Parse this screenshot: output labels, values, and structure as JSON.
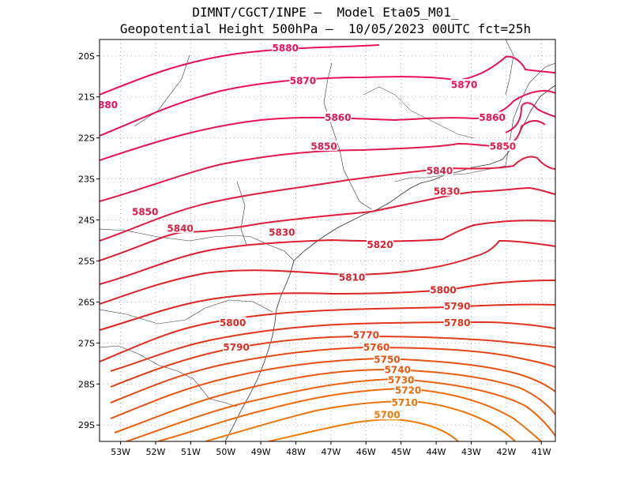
{
  "header": {
    "line1": "DIMNT/CGCT/INPE –  Model Eta05_M01_",
    "line2": "Geopotential Height 500hPa –  10/05/2023 00UTC fct=25h"
  },
  "map": {
    "lon_range": [
      -53.6,
      -40.6
    ],
    "lat_range": [
      -29.4,
      -19.6
    ],
    "lat_ticks": [
      "20S",
      "21S",
      "22S",
      "23S",
      "24S",
      "25S",
      "26S",
      "27S",
      "28S",
      "29S"
    ],
    "lon_ticks": [
      "53W",
      "52W",
      "51W",
      "50W",
      "49W",
      "48W",
      "47W",
      "46W",
      "45W",
      "44W",
      "43W",
      "42W",
      "41W"
    ],
    "contours": [
      {
        "value": "5880",
        "color": "#e8105c",
        "label_lon": -48.3,
        "label_lat": -19.8
      },
      {
        "value": "5870",
        "color": "#e8105c",
        "label_lon": -47.8,
        "label_lat": -20.6
      },
      {
        "value": "5860",
        "color": "#e51453",
        "label_lon": -46.8,
        "label_lat": -21.5
      },
      {
        "value": "5850",
        "color": "#e2184a",
        "label_lon": -47.2,
        "label_lat": -22.2
      },
      {
        "value": "5840",
        "color": "#e01c40",
        "label_lon": -43.9,
        "label_lat": -22.8
      },
      {
        "value": "5830",
        "color": "#de1e38",
        "label_lon": -48.4,
        "label_lat": -24.3
      },
      {
        "value": "5820",
        "color": "#dd1f30",
        "label_lon": -45.6,
        "label_lat": -24.6
      },
      {
        "value": "5810",
        "color": "#dc2128",
        "label_lon": -46.4,
        "label_lat": -25.4
      },
      {
        "value": "5800",
        "color": "#dd2622",
        "label_lon": -43.8,
        "label_lat": -25.7
      },
      {
        "value": "5790",
        "color": "#df2e1e",
        "label_lon": -43.4,
        "label_lat": -26.1
      },
      {
        "value": "5780",
        "color": "#e1361b",
        "label_lon": -43.4,
        "label_lat": -26.5
      },
      {
        "value": "5770",
        "color": "#e33f18",
        "label_lon": -46.0,
        "label_lat": -26.8
      },
      {
        "value": "5760",
        "color": "#e54815",
        "label_lon": -45.7,
        "label_lat": -27.1
      },
      {
        "value": "5750",
        "color": "#e75212",
        "label_lon": -45.4,
        "label_lat": -27.4
      },
      {
        "value": "5740",
        "color": "#ea5a10",
        "label_lon": -45.1,
        "label_lat": -27.65
      },
      {
        "value": "5730",
        "color": "#ec620e",
        "label_lon": -45.0,
        "label_lat": -27.9
      },
      {
        "value": "5720",
        "color": "#ee6a0c",
        "label_lon": -44.8,
        "label_lat": -28.15
      },
      {
        "value": "5710",
        "color": "#f0720a",
        "label_lon": -44.9,
        "label_lat": -28.45
      },
      {
        "value": "5700",
        "color": "#f27a08",
        "label_lon": -45.4,
        "label_lat": -28.75
      }
    ],
    "edge_label": {
      "value": "880",
      "color": "#e8105c"
    },
    "high_label": {
      "value": "5860",
      "color": "#e51453",
      "label_lon": -42.4,
      "label_lat": -21.5
    },
    "labels_extra": [
      {
        "value": "5870",
        "color": "#e8105c",
        "label_lon": -43.2,
        "label_lat": -20.7
      },
      {
        "value": "5850",
        "color": "#e2184a",
        "label_lon": -42.1,
        "label_lat": -22.2
      },
      {
        "value": "5830",
        "color": "#de1e38",
        "label_lon": -43.7,
        "label_lat": -23.3
      },
      {
        "value": "5850",
        "color": "#e2184a",
        "label_lon": -52.3,
        "label_lat": -23.8
      },
      {
        "value": "5840",
        "color": "#e01c40",
        "label_lon": -51.3,
        "label_lat": -24.2
      },
      {
        "value": "5800",
        "color": "#dd2622",
        "label_lon": -49.8,
        "label_lat": -26.5
      },
      {
        "value": "5790",
        "color": "#df2e1e",
        "label_lon": -49.7,
        "label_lat": -27.1
      }
    ]
  }
}
